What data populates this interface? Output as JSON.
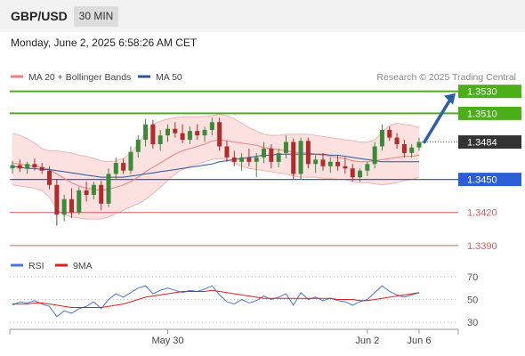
{
  "header": {
    "symbol": "GBP/USD",
    "timeframe": "30 MIN",
    "datetime": "Monday, June 2, 2025 6:58:26 AM CET"
  },
  "legend": {
    "ma20": "MA 20 + Bollinger Bands",
    "ma50": "MA 50",
    "credit": "Research © 2025 Trading Central",
    "ma20_color": "#f08080",
    "ma50_color": "#2b5797"
  },
  "levels": {
    "resistance": [
      {
        "value": 1.353,
        "label": "1.3530",
        "color": "#4caf1a"
      },
      {
        "value": 1.351,
        "label": "1.3510",
        "color": "#4caf1a"
      }
    ],
    "pivot": {
      "value": 1.345,
      "label": "1.3450",
      "color": "#2a5fd8"
    },
    "support": [
      {
        "value": 1.342,
        "label": "1.3420",
        "color": "#e05c5c"
      },
      {
        "value": 1.339,
        "label": "1.3390",
        "color": "#e05c5c"
      }
    ],
    "current": {
      "value": 1.3484,
      "label": "1.3484",
      "color": "#333333"
    }
  },
  "rsi_panel": {
    "rsi_label": "RSI",
    "ma_label": "9MA",
    "rsi_color": "#4a74d9",
    "ma_color": "#e02020",
    "ticks": [
      {
        "value": 70,
        "label": "70"
      },
      {
        "value": 50,
        "label": "50"
      },
      {
        "value": 30,
        "label": "30"
      }
    ]
  },
  "x_axis": {
    "labels": [
      {
        "label": "May 30",
        "index": 21
      },
      {
        "label": "Jun 2",
        "index": 48
      },
      {
        "label": "Jun 6",
        "index": 55
      }
    ]
  },
  "chart_data": {
    "type": "candlestick",
    "ylim": [
      1.3385,
      1.3537
    ],
    "candles": [
      [
        1.346,
        1.3467,
        1.3455,
        1.3463
      ],
      [
        1.3463,
        1.3468,
        1.3457,
        1.346
      ],
      [
        1.346,
        1.3466,
        1.3455,
        1.3464
      ],
      [
        1.3464,
        1.3469,
        1.3458,
        1.3461
      ],
      [
        1.3461,
        1.3465,
        1.3455,
        1.3458
      ],
      [
        1.3458,
        1.3462,
        1.3441,
        1.3445
      ],
      [
        1.3445,
        1.345,
        1.3408,
        1.3418
      ],
      [
        1.3418,
        1.3436,
        1.3412,
        1.3432
      ],
      [
        1.3432,
        1.3442,
        1.3415,
        1.342
      ],
      [
        1.342,
        1.3443,
        1.3418,
        1.344
      ],
      [
        1.344,
        1.3448,
        1.343,
        1.3436
      ],
      [
        1.3436,
        1.3448,
        1.3432,
        1.3445
      ],
      [
        1.3445,
        1.3449,
        1.3422,
        1.3428
      ],
      [
        1.3428,
        1.346,
        1.3425,
        1.3455
      ],
      [
        1.3455,
        1.347,
        1.345,
        1.3465
      ],
      [
        1.3465,
        1.3469,
        1.3455,
        1.3458
      ],
      [
        1.3458,
        1.348,
        1.3455,
        1.3475
      ],
      [
        1.3475,
        1.349,
        1.347,
        1.3486
      ],
      [
        1.3486,
        1.3505,
        1.348,
        1.35
      ],
      [
        1.35,
        1.3504,
        1.3478,
        1.3482
      ],
      [
        1.3482,
        1.3495,
        1.3476,
        1.349
      ],
      [
        1.349,
        1.35,
        1.3484,
        1.3496
      ],
      [
        1.3496,
        1.3502,
        1.3488,
        1.3492
      ],
      [
        1.3492,
        1.35,
        1.3483,
        1.3486
      ],
      [
        1.3486,
        1.3498,
        1.3482,
        1.3494
      ],
      [
        1.3494,
        1.35,
        1.3486,
        1.349
      ],
      [
        1.349,
        1.3498,
        1.3484,
        1.3495
      ],
      [
        1.3495,
        1.3506,
        1.349,
        1.3502
      ],
      [
        1.3502,
        1.3506,
        1.3476,
        1.348
      ],
      [
        1.348,
        1.3485,
        1.3466,
        1.347
      ],
      [
        1.347,
        1.3476,
        1.3462,
        1.3466
      ],
      [
        1.3466,
        1.3474,
        1.3458,
        1.347
      ],
      [
        1.347,
        1.3478,
        1.3462,
        1.3466
      ],
      [
        1.3466,
        1.3474,
        1.3452,
        1.347
      ],
      [
        1.347,
        1.3484,
        1.3465,
        1.3478
      ],
      [
        1.3478,
        1.3482,
        1.346,
        1.3466
      ],
      [
        1.3466,
        1.3478,
        1.3461,
        1.3474
      ],
      [
        1.3474,
        1.349,
        1.3469,
        1.3484
      ],
      [
        1.3484,
        1.3487,
        1.345,
        1.3455
      ],
      [
        1.3455,
        1.3488,
        1.345,
        1.3485
      ],
      [
        1.3485,
        1.3488,
        1.346,
        1.3464
      ],
      [
        1.3464,
        1.3472,
        1.3456,
        1.3468
      ],
      [
        1.3468,
        1.3474,
        1.3458,
        1.3462
      ],
      [
        1.3462,
        1.347,
        1.3456,
        1.3466
      ],
      [
        1.3466,
        1.3472,
        1.3458,
        1.3462
      ],
      [
        1.3462,
        1.347,
        1.3455,
        1.346
      ],
      [
        1.346,
        1.3464,
        1.3448,
        1.3452
      ],
      [
        1.3452,
        1.346,
        1.3448,
        1.3458
      ],
      [
        1.3458,
        1.3466,
        1.3453,
        1.3464
      ],
      [
        1.3464,
        1.3484,
        1.346,
        1.348
      ],
      [
        1.348,
        1.35,
        1.3476,
        1.3495
      ],
      [
        1.3495,
        1.3498,
        1.3485,
        1.3488
      ],
      [
        1.3488,
        1.3492,
        1.3478,
        1.3482
      ],
      [
        1.3482,
        1.3486,
        1.347,
        1.3474
      ],
      [
        1.3474,
        1.3482,
        1.347,
        1.3479
      ],
      [
        1.3479,
        1.3488,
        1.3476,
        1.3484
      ]
    ],
    "ma20": [
      1.3465,
      1.3464,
      1.3463,
      1.3462,
      1.3461,
      1.3459,
      1.3455,
      1.3451,
      1.3447,
      1.3444,
      1.3442,
      1.3441,
      1.344,
      1.3441,
      1.3443,
      1.3445,
      1.3448,
      1.3452,
      1.3457,
      1.3461,
      1.3465,
      1.3469,
      1.3473,
      1.3476,
      1.3478,
      1.348,
      1.3482,
      1.3485,
      1.3486,
      1.3485,
      1.3484,
      1.3483,
      1.3482,
      1.3481,
      1.3479,
      1.3478,
      1.3477,
      1.3476,
      1.3475,
      1.3474,
      1.3474,
      1.3473,
      1.3472,
      1.3471,
      1.347,
      1.3469,
      1.3467,
      1.3466,
      1.3466,
      1.3467,
      1.3468,
      1.3469,
      1.347,
      1.3471,
      1.3471,
      1.3472
    ],
    "bb_upper": [
      1.3492,
      1.349,
      1.3487,
      1.3483,
      1.3478,
      1.3476,
      1.3476,
      1.3475,
      1.3474,
      1.3472,
      1.3471,
      1.3469,
      1.3467,
      1.3466,
      1.3467,
      1.3469,
      1.3474,
      1.3482,
      1.3493,
      1.35,
      1.3503,
      1.3505,
      1.3506,
      1.3507,
      1.3507,
      1.3507,
      1.3507,
      1.3508,
      1.3509,
      1.3508,
      1.3505,
      1.3501,
      1.3497,
      1.3494,
      1.3491,
      1.349,
      1.349,
      1.3491,
      1.3491,
      1.3491,
      1.3491,
      1.349,
      1.3489,
      1.3488,
      1.3487,
      1.3486,
      1.3485,
      1.3484,
      1.3484,
      1.3486,
      1.3493,
      1.3499,
      1.3501,
      1.35,
      1.3499,
      1.3497
    ],
    "bb_lower": [
      1.3445,
      1.3444,
      1.3443,
      1.3442,
      1.344,
      1.3434,
      1.3422,
      1.3418,
      1.3416,
      1.3415,
      1.3414,
      1.3414,
      1.3414,
      1.3416,
      1.3419,
      1.3422,
      1.3425,
      1.3428,
      1.3432,
      1.3437,
      1.3443,
      1.3449,
      1.3455,
      1.3459,
      1.3462,
      1.3464,
      1.3466,
      1.3468,
      1.3469,
      1.3468,
      1.3465,
      1.3462,
      1.346,
      1.3459,
      1.3458,
      1.3457,
      1.3456,
      1.3455,
      1.3453,
      1.3452,
      1.3452,
      1.3452,
      1.3451,
      1.3451,
      1.345,
      1.345,
      1.3448,
      1.3447,
      1.3447,
      1.3446,
      1.3445,
      1.3446,
      1.3447,
      1.3449,
      1.345,
      1.3452
    ],
    "ma50": [
      1.3462,
      1.3461,
      1.346,
      1.346,
      1.3459,
      1.3459,
      1.3458,
      1.3457,
      1.3456,
      1.3455,
      1.3454,
      1.3453,
      1.3452,
      1.3452,
      1.3452,
      1.3452,
      1.3453,
      1.3454,
      1.3455,
      1.3456,
      1.3457,
      1.3458,
      1.3459,
      1.346,
      1.3461,
      1.3462,
      1.3463,
      1.3464,
      1.3466,
      1.3467,
      1.3468,
      1.3469,
      1.347,
      1.3471,
      1.3472,
      1.3472,
      1.3473,
      1.3473,
      1.3473,
      1.3473,
      1.3473,
      1.3473,
      1.3473,
      1.3472,
      1.3472,
      1.3471,
      1.347,
      1.3469,
      1.3468,
      1.3467,
      1.3466,
      1.3466,
      1.3466,
      1.3466,
      1.3466,
      1.3466
    ],
    "rsi": [
      45,
      48,
      47,
      49,
      46,
      44,
      35,
      40,
      38,
      42,
      44,
      48,
      42,
      50,
      55,
      52,
      56,
      60,
      62,
      55,
      58,
      60,
      58,
      56,
      58,
      57,
      59,
      62,
      54,
      48,
      46,
      50,
      47,
      49,
      53,
      50,
      52,
      55,
      45,
      56,
      50,
      52,
      49,
      51,
      49,
      48,
      45,
      48,
      50,
      56,
      62,
      57,
      54,
      52,
      54,
      56
    ],
    "rsi_ma": [
      46,
      46,
      46,
      47,
      47,
      46,
      45,
      44,
      43,
      43,
      43,
      43,
      43,
      44,
      45,
      46,
      48,
      50,
      52,
      53,
      54,
      55,
      56,
      57,
      57,
      57,
      57,
      58,
      57,
      56,
      55,
      54,
      53,
      52,
      51,
      51,
      51,
      51,
      51,
      51,
      51,
      51,
      51,
      51,
      50,
      50,
      50,
      49,
      49,
      50,
      51,
      52,
      53,
      54,
      55,
      56
    ]
  }
}
